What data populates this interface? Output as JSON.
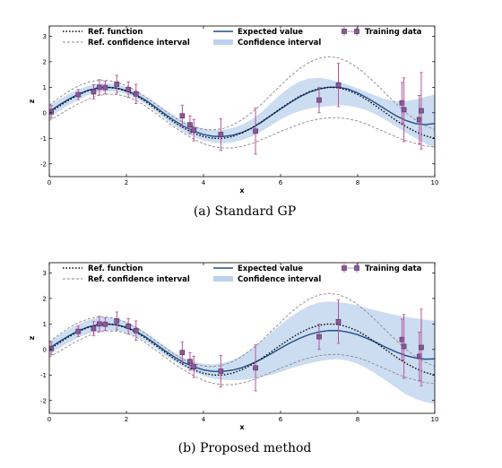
{
  "chart_data": [
    {
      "type": "line",
      "caption": "(a) Standard GP",
      "xlabel": "x",
      "ylabel": "z",
      "xlim": [
        0,
        10
      ],
      "ylim": [
        -2.5,
        3.4
      ],
      "xticks": [
        "0",
        "2",
        "4",
        "6",
        "8",
        "10"
      ],
      "yticks": [
        "-2",
        "-1",
        "0",
        "1",
        "2",
        "3"
      ],
      "legend": [
        "Ref. function",
        "Ref. confidence interval",
        "Expected value",
        "Confidence interval",
        "Training data"
      ],
      "x": [
        0,
        0.25,
        0.5,
        0.75,
        1,
        1.25,
        1.5,
        1.75,
        2,
        2.25,
        2.5,
        2.75,
        3,
        3.25,
        3.5,
        3.75,
        4,
        4.25,
        4.5,
        4.75,
        5,
        5.25,
        5.5,
        5.75,
        6,
        6.25,
        6.5,
        6.75,
        7,
        7.25,
        7.5,
        7.75,
        8,
        8.25,
        8.5,
        8.75,
        9,
        9.25,
        9.5,
        9.75,
        10
      ],
      "series": [
        {
          "name": "Ref. function",
          "values": [
            0.0,
            0.25,
            0.49,
            0.7,
            0.86,
            0.97,
            1.0,
            0.96,
            0.85,
            0.68,
            0.44,
            0.17,
            -0.11,
            -0.38,
            -0.61,
            -0.8,
            -0.93,
            -1.0,
            -1.0,
            -0.93,
            -0.79,
            -0.6,
            -0.36,
            -0.1,
            0.17,
            0.42,
            0.65,
            0.83,
            0.95,
            1.0,
            0.98,
            0.88,
            0.72,
            0.5,
            0.24,
            -0.03,
            -0.3,
            -0.54,
            -0.74,
            -0.9,
            -1.0
          ]
        },
        {
          "name": "Ref. confidence interval upper",
          "values": [
            0.3,
            0.58,
            0.84,
            1.05,
            1.19,
            1.27,
            1.27,
            1.2,
            1.06,
            0.87,
            0.62,
            0.35,
            0.07,
            -0.19,
            -0.41,
            -0.56,
            -0.65,
            -0.67,
            -0.62,
            -0.48,
            -0.27,
            0.01,
            0.33,
            0.7,
            1.07,
            1.43,
            1.74,
            1.98,
            2.14,
            2.2,
            2.15,
            2.0,
            1.76,
            1.45,
            1.1,
            0.72,
            0.35,
            0.01,
            -0.28,
            -0.5,
            -0.66
          ]
        },
        {
          "name": "Ref. confidence interval lower",
          "values": [
            -0.3,
            -0.08,
            0.14,
            0.35,
            0.53,
            0.67,
            0.73,
            0.72,
            0.64,
            0.49,
            0.26,
            -0.01,
            -0.29,
            -0.57,
            -0.81,
            -1.04,
            -1.21,
            -1.33,
            -1.38,
            -1.38,
            -1.31,
            -1.21,
            -1.05,
            -0.9,
            -0.73,
            -0.59,
            -0.44,
            -0.32,
            -0.24,
            -0.2,
            -0.19,
            -0.24,
            -0.32,
            -0.45,
            -0.62,
            -0.78,
            -0.95,
            -1.09,
            -1.2,
            -1.3,
            -1.34
          ]
        },
        {
          "name": "Expected value",
          "values": [
            0.05,
            0.3,
            0.53,
            0.73,
            0.88,
            0.97,
            1.0,
            0.97,
            0.87,
            0.71,
            0.49,
            0.23,
            -0.05,
            -0.31,
            -0.54,
            -0.72,
            -0.85,
            -0.92,
            -0.93,
            -0.88,
            -0.77,
            -0.6,
            -0.37,
            -0.11,
            0.15,
            0.4,
            0.63,
            0.81,
            0.93,
            1.0,
            1.0,
            0.93,
            0.78,
            0.58,
            0.35,
            0.11,
            -0.12,
            -0.3,
            -0.42,
            -0.46,
            -0.42
          ]
        },
        {
          "name": "Confidence interval upper",
          "values": [
            0.3,
            0.52,
            0.73,
            0.91,
            1.05,
            1.14,
            1.16,
            1.11,
            1.01,
            0.85,
            0.64,
            0.4,
            0.14,
            -0.11,
            -0.33,
            -0.5,
            -0.62,
            -0.68,
            -0.67,
            -0.6,
            -0.46,
            -0.26,
            0.02,
            0.38,
            0.72,
            1.01,
            1.23,
            1.35,
            1.37,
            1.31,
            1.22,
            1.1,
            0.96,
            0.8,
            0.65,
            0.52,
            0.45,
            0.46,
            0.52,
            0.62,
            0.72
          ]
        },
        {
          "name": "Confidence interval lower",
          "values": [
            -0.2,
            0.06,
            0.3,
            0.51,
            0.69,
            0.8,
            0.84,
            0.83,
            0.73,
            0.57,
            0.34,
            0.06,
            -0.24,
            -0.52,
            -0.77,
            -0.95,
            -1.08,
            -1.16,
            -1.2,
            -1.16,
            -1.07,
            -0.92,
            -0.73,
            -0.5,
            -0.26,
            -0.07,
            0.07,
            0.17,
            0.22,
            0.26,
            0.3,
            0.28,
            0.21,
            0.09,
            -0.08,
            -0.3,
            -0.54,
            -0.78,
            -1.0,
            -1.2,
            -1.4
          ]
        }
      ],
      "training_data": [
        {
          "x": 0.05,
          "y": 0.04,
          "err": 0.25
        },
        {
          "x": 0.75,
          "y": 0.71,
          "err": 0.2
        },
        {
          "x": 1.15,
          "y": 0.82,
          "err": 0.28
        },
        {
          "x": 1.3,
          "y": 1.0,
          "err": 0.3
        },
        {
          "x": 1.45,
          "y": 0.99,
          "err": 0.25
        },
        {
          "x": 1.75,
          "y": 1.12,
          "err": 0.35
        },
        {
          "x": 2.05,
          "y": 0.91,
          "err": 0.3
        },
        {
          "x": 2.25,
          "y": 0.74,
          "err": 0.38
        },
        {
          "x": 3.45,
          "y": -0.12,
          "err": 0.42
        },
        {
          "x": 3.65,
          "y": -0.47,
          "err": 0.35
        },
        {
          "x": 3.75,
          "y": -0.68,
          "err": 0.42
        },
        {
          "x": 4.45,
          "y": -0.85,
          "err": 0.62
        },
        {
          "x": 5.35,
          "y": -0.72,
          "err": 0.9
        },
        {
          "x": 7.0,
          "y": 0.5,
          "err": 0.5
        },
        {
          "x": 7.5,
          "y": 1.09,
          "err": 0.85
        },
        {
          "x": 9.15,
          "y": 0.39,
          "err": 0.8
        },
        {
          "x": 9.2,
          "y": 0.12,
          "err": 1.25
        },
        {
          "x": 9.6,
          "y": -0.27,
          "err": 0.95
        },
        {
          "x": 9.65,
          "y": 0.08,
          "err": 1.5
        }
      ]
    },
    {
      "type": "line",
      "caption": "(b) Proposed method",
      "xlabel": "x",
      "ylabel": "z",
      "xlim": [
        0,
        10
      ],
      "ylim": [
        -2.5,
        3.4
      ],
      "xticks": [
        "0",
        "2",
        "4",
        "6",
        "8",
        "10"
      ],
      "yticks": [
        "-2",
        "-1",
        "0",
        "1",
        "2",
        "3"
      ],
      "legend": [
        "Ref. function",
        "Ref. confidence interval",
        "Expected value",
        "Confidence interval",
        "Training data"
      ],
      "x": [
        0,
        0.25,
        0.5,
        0.75,
        1,
        1.25,
        1.5,
        1.75,
        2,
        2.25,
        2.5,
        2.75,
        3,
        3.25,
        3.5,
        3.75,
        4,
        4.25,
        4.5,
        4.75,
        5,
        5.25,
        5.5,
        5.75,
        6,
        6.25,
        6.5,
        6.75,
        7,
        7.25,
        7.5,
        7.75,
        8,
        8.25,
        8.5,
        8.75,
        9,
        9.25,
        9.5,
        9.75,
        10
      ],
      "series": [
        {
          "name": "Ref. function",
          "values": [
            0.0,
            0.25,
            0.49,
            0.7,
            0.86,
            0.97,
            1.0,
            0.96,
            0.85,
            0.68,
            0.44,
            0.17,
            -0.11,
            -0.38,
            -0.61,
            -0.8,
            -0.93,
            -1.0,
            -1.0,
            -0.93,
            -0.79,
            -0.6,
            -0.36,
            -0.1,
            0.17,
            0.42,
            0.65,
            0.83,
            0.95,
            1.0,
            0.98,
            0.88,
            0.72,
            0.5,
            0.24,
            -0.03,
            -0.3,
            -0.54,
            -0.74,
            -0.9,
            -1.0
          ]
        },
        {
          "name": "Ref. confidence interval upper",
          "values": [
            0.3,
            0.58,
            0.84,
            1.05,
            1.19,
            1.27,
            1.27,
            1.2,
            1.06,
            0.87,
            0.62,
            0.35,
            0.07,
            -0.19,
            -0.41,
            -0.56,
            -0.65,
            -0.67,
            -0.62,
            -0.48,
            -0.27,
            0.01,
            0.33,
            0.7,
            1.07,
            1.43,
            1.74,
            1.98,
            2.14,
            2.2,
            2.15,
            2.0,
            1.76,
            1.45,
            1.1,
            0.72,
            0.35,
            0.01,
            -0.28,
            -0.5,
            -0.66
          ]
        },
        {
          "name": "Ref. confidence interval lower",
          "values": [
            -0.3,
            -0.08,
            0.14,
            0.35,
            0.53,
            0.67,
            0.73,
            0.72,
            0.64,
            0.49,
            0.26,
            -0.01,
            -0.29,
            -0.57,
            -0.81,
            -1.04,
            -1.21,
            -1.33,
            -1.38,
            -1.38,
            -1.31,
            -1.21,
            -1.05,
            -0.9,
            -0.73,
            -0.59,
            -0.44,
            -0.32,
            -0.24,
            -0.2,
            -0.19,
            -0.24,
            -0.32,
            -0.45,
            -0.62,
            -0.78,
            -0.95,
            -1.09,
            -1.2,
            -1.3,
            -1.34
          ]
        },
        {
          "name": "Expected value",
          "values": [
            0.05,
            0.3,
            0.53,
            0.73,
            0.88,
            0.97,
            1.0,
            0.97,
            0.87,
            0.71,
            0.49,
            0.23,
            -0.05,
            -0.3,
            -0.52,
            -0.68,
            -0.8,
            -0.86,
            -0.86,
            -0.81,
            -0.71,
            -0.56,
            -0.38,
            -0.17,
            0.05,
            0.26,
            0.44,
            0.59,
            0.69,
            0.74,
            0.74,
            0.68,
            0.58,
            0.43,
            0.26,
            0.07,
            -0.1,
            -0.24,
            -0.33,
            -0.38,
            -0.37
          ]
        },
        {
          "name": "Confidence interval upper",
          "values": [
            0.3,
            0.55,
            0.79,
            0.99,
            1.14,
            1.24,
            1.25,
            1.2,
            1.08,
            0.9,
            0.67,
            0.4,
            0.13,
            -0.13,
            -0.34,
            -0.48,
            -0.56,
            -0.58,
            -0.53,
            -0.42,
            -0.23,
            0.02,
            0.32,
            0.65,
            0.98,
            1.27,
            1.52,
            1.72,
            1.84,
            1.88,
            1.86,
            1.8,
            1.72,
            1.62,
            1.52,
            1.43,
            1.35,
            1.28,
            1.22,
            1.17,
            1.12
          ]
        },
        {
          "name": "Confidence interval lower",
          "values": [
            -0.2,
            0.05,
            0.27,
            0.47,
            0.62,
            0.7,
            0.75,
            0.74,
            0.66,
            0.52,
            0.31,
            0.06,
            -0.23,
            -0.47,
            -0.7,
            -0.88,
            -1.04,
            -1.14,
            -1.19,
            -1.2,
            -1.19,
            -1.14,
            -1.08,
            -0.99,
            -0.88,
            -0.75,
            -0.64,
            -0.54,
            -0.46,
            -0.4,
            -0.38,
            -0.44,
            -0.56,
            -0.75,
            -0.98,
            -1.23,
            -1.5,
            -1.76,
            -1.93,
            -2.06,
            -2.14
          ]
        }
      ],
      "training_data": [
        {
          "x": 0.05,
          "y": 0.04,
          "err": 0.25
        },
        {
          "x": 0.75,
          "y": 0.71,
          "err": 0.2
        },
        {
          "x": 1.15,
          "y": 0.82,
          "err": 0.28
        },
        {
          "x": 1.3,
          "y": 1.0,
          "err": 0.3
        },
        {
          "x": 1.45,
          "y": 0.99,
          "err": 0.25
        },
        {
          "x": 1.75,
          "y": 1.12,
          "err": 0.35
        },
        {
          "x": 2.05,
          "y": 0.91,
          "err": 0.3
        },
        {
          "x": 2.25,
          "y": 0.74,
          "err": 0.38
        },
        {
          "x": 3.45,
          "y": -0.12,
          "err": 0.42
        },
        {
          "x": 3.65,
          "y": -0.47,
          "err": 0.35
        },
        {
          "x": 3.75,
          "y": -0.68,
          "err": 0.42
        },
        {
          "x": 4.45,
          "y": -0.85,
          "err": 0.62
        },
        {
          "x": 5.35,
          "y": -0.72,
          "err": 0.9
        },
        {
          "x": 7.0,
          "y": 0.5,
          "err": 0.5
        },
        {
          "x": 7.5,
          "y": 1.09,
          "err": 0.85
        },
        {
          "x": 9.15,
          "y": 0.39,
          "err": 0.8
        },
        {
          "x": 9.2,
          "y": 0.12,
          "err": 1.25
        },
        {
          "x": 9.6,
          "y": -0.27,
          "err": 0.95
        },
        {
          "x": 9.65,
          "y": 0.08,
          "err": 1.5
        }
      ]
    }
  ],
  "colors": {
    "ref_function": "#000000",
    "ref_confidence": "#888888",
    "expected_value": "#1f4e8c",
    "confidence_fill": "#aac6e8",
    "training_marker": "#8a5a9a",
    "training_edge": "#5a2e6a",
    "error_bar": "#b4549a"
  }
}
